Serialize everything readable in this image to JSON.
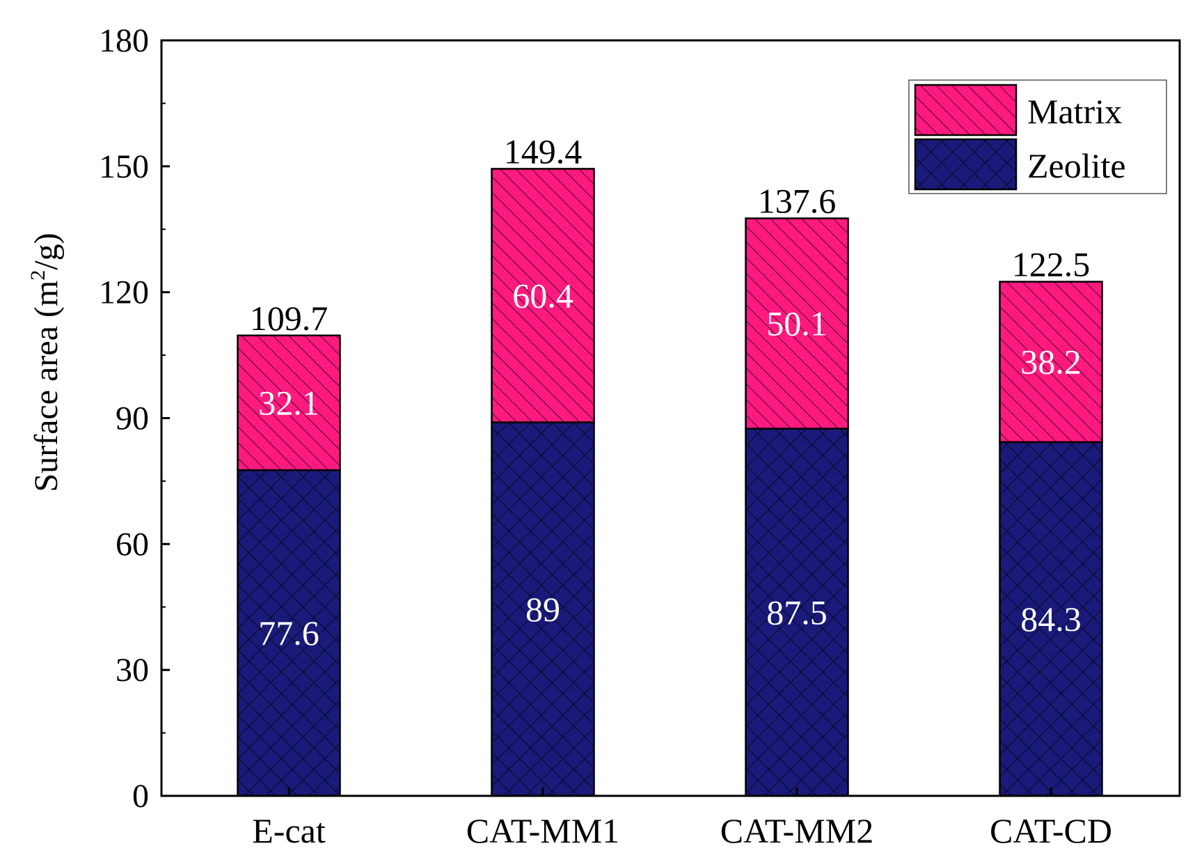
{
  "chart_data": {
    "type": "bar",
    "stacked": true,
    "categories": [
      "E-cat",
      "CAT-MM1",
      "CAT-MM2",
      "CAT-CD"
    ],
    "series": [
      {
        "name": "Zeolite",
        "values": [
          77.6,
          89,
          87.5,
          84.3
        ],
        "color": "#1a1a7a",
        "pattern": "crosshatch"
      },
      {
        "name": "Matrix",
        "values": [
          32.1,
          60.4,
          50.1,
          38.2
        ],
        "color": "#ff1a80",
        "pattern": "diagonal"
      }
    ],
    "totals": [
      109.7,
      149.4,
      137.6,
      122.5
    ],
    "total_labels": [
      "109.7",
      "149.4",
      "137.6",
      "122.5"
    ],
    "zeolite_labels": [
      "77.6",
      "89",
      "87.5",
      "84.3"
    ],
    "matrix_labels": [
      "32.1",
      "60.4",
      "50.1",
      "38.2"
    ],
    "ylabel_main": "Surface area (m",
    "ylabel_sup": "2",
    "ylabel_end": "/g)",
    "xlabel": "",
    "ylim": [
      0,
      180
    ],
    "yticks": [
      0,
      30,
      60,
      90,
      120,
      150,
      180
    ],
    "ytick_labels": [
      "0",
      "30",
      "60",
      "90",
      "120",
      "150",
      "180"
    ],
    "legend": {
      "placement": "top-right",
      "entries": [
        "Matrix",
        "Zeolite"
      ]
    },
    "grid": false
  }
}
